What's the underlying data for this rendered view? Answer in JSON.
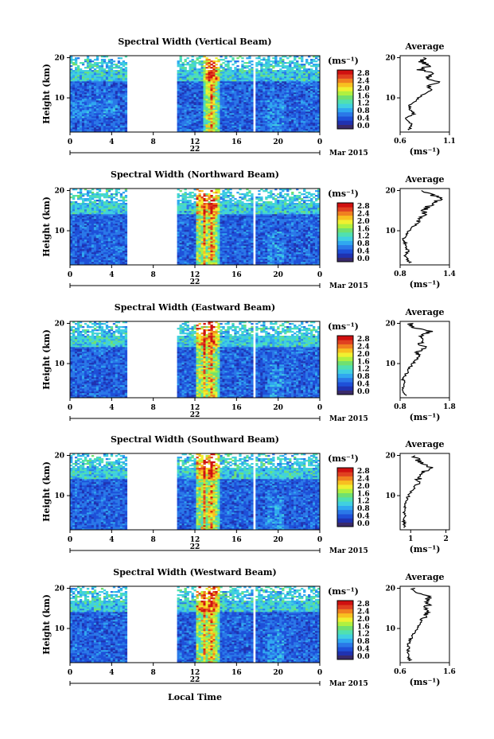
{
  "colors": {
    "scale": [
      "#3a2a6a",
      "#2032b0",
      "#1e50d8",
      "#2a78e8",
      "#30a8f0",
      "#40d0e0",
      "#50e0b0",
      "#70e070",
      "#b0f040",
      "#f0f030",
      "#f8c020",
      "#f08020",
      "#e04020",
      "#d01010"
    ],
    "blank": "#ffffff"
  },
  "colorbar": {
    "unit": "(ms⁻¹)",
    "ticks": [
      "2.8",
      "2.4",
      "2.0",
      "1.6",
      "1.2",
      "0.8",
      "0.4",
      "0.0"
    ]
  },
  "shared": {
    "ylabel": "Height (km)",
    "yticks": [
      "20",
      "10"
    ],
    "xticks": [
      "0",
      "4",
      "8",
      "12",
      "16",
      "20",
      "0"
    ],
    "date_day": "22",
    "date_month": "Mar 2015",
    "xlabel": "Local Time",
    "avg_title": "Average",
    "avg_xlabel": "(ms⁻¹)",
    "avg_yticks": [
      "20",
      "10"
    ]
  },
  "chart_data": [
    {
      "type": "heatmap",
      "title": "Spectral Width (Vertical Beam)",
      "x_range_hours": [
        0,
        24
      ],
      "y_range_km": [
        1.5,
        20.5
      ],
      "gaps_hours": [
        [
          5.5,
          10.2
        ],
        [
          17.6,
          17.9
        ]
      ],
      "clim": [
        0,
        3.0
      ],
      "avg_profile": {
        "xticks": [
          "0.6",
          "1.1"
        ],
        "xlim": [
          0.6,
          1.1
        ],
        "heights_km": [
          2,
          3,
          4,
          5,
          6,
          7,
          8,
          9,
          10,
          11,
          12,
          13,
          14,
          15,
          16,
          17,
          18,
          19,
          20
        ],
        "values": [
          0.68,
          0.72,
          0.7,
          0.66,
          0.74,
          0.71,
          0.69,
          0.75,
          0.78,
          0.85,
          0.92,
          0.88,
          0.98,
          0.86,
          0.94,
          0.8,
          0.9,
          0.82,
          0.85
        ]
      }
    },
    {
      "type": "heatmap",
      "title": "Spectral Width (Northward Beam)",
      "x_range_hours": [
        0,
        24
      ],
      "y_range_km": [
        1.5,
        20.5
      ],
      "gaps_hours": [
        [
          5.5,
          10.2
        ],
        [
          17.6,
          17.9
        ]
      ],
      "clim": [
        0,
        3.0
      ],
      "avg_profile": {
        "xticks": [
          "0.8",
          "1.4"
        ],
        "xlim": [
          0.8,
          1.4
        ],
        "heights_km": [
          2,
          3,
          4,
          5,
          6,
          7,
          8,
          9,
          10,
          11,
          12,
          13,
          14,
          15,
          16,
          17,
          18,
          19,
          20
        ],
        "values": [
          0.92,
          0.88,
          0.86,
          0.9,
          0.87,
          0.86,
          0.84,
          0.87,
          0.9,
          0.96,
          1.02,
          1.06,
          1.1,
          1.08,
          1.14,
          1.22,
          1.3,
          1.18,
          1.05
        ]
      }
    },
    {
      "type": "heatmap",
      "title": "Spectral Width (Eastward Beam)",
      "x_range_hours": [
        0,
        24
      ],
      "y_range_km": [
        1.5,
        20.5
      ],
      "gaps_hours": [
        [
          5.5,
          10.2
        ],
        [
          17.6,
          17.9
        ]
      ],
      "clim": [
        0,
        3.0
      ],
      "avg_profile": {
        "xticks": [
          "0.8",
          "1.8"
        ],
        "xlim": [
          0.8,
          1.8
        ],
        "heights_km": [
          2,
          3,
          4,
          5,
          6,
          7,
          8,
          9,
          10,
          11,
          12,
          13,
          14,
          15,
          16,
          17,
          18,
          19,
          20
        ],
        "values": [
          0.9,
          0.86,
          0.85,
          0.88,
          0.86,
          0.9,
          0.95,
          1.0,
          1.06,
          1.12,
          1.2,
          1.16,
          1.28,
          1.22,
          1.32,
          1.2,
          1.4,
          1.1,
          1.0
        ]
      }
    },
    {
      "type": "heatmap",
      "title": "Spectral Width (Southward Beam)",
      "x_range_hours": [
        0,
        24
      ],
      "y_range_km": [
        1.5,
        20.5
      ],
      "gaps_hours": [
        [
          5.5,
          10.2
        ],
        [
          17.6,
          17.9
        ]
      ],
      "clim": [
        0,
        3.0
      ],
      "avg_profile": {
        "xticks": [
          "1",
          "2"
        ],
        "xlim": [
          0.7,
          2.1
        ],
        "heights_km": [
          2,
          3,
          4,
          5,
          6,
          7,
          8,
          9,
          10,
          11,
          12,
          13,
          14,
          15,
          16,
          17,
          18,
          19,
          20
        ],
        "values": [
          0.85,
          0.82,
          0.8,
          0.84,
          0.82,
          0.84,
          0.86,
          0.9,
          0.94,
          1.0,
          1.1,
          1.16,
          1.22,
          1.3,
          1.4,
          1.6,
          1.3,
          1.2,
          1.05
        ]
      }
    },
    {
      "type": "heatmap",
      "title": "Spectral Width (Westward Beam)",
      "x_range_hours": [
        0,
        24
      ],
      "y_range_km": [
        1.5,
        20.5
      ],
      "gaps_hours": [
        [
          5.5,
          10.2
        ],
        [
          17.6,
          17.9
        ]
      ],
      "clim": [
        0,
        3.0
      ],
      "avg_profile": {
        "xticks": [
          "0.6",
          "1.6"
        ],
        "xlim": [
          0.6,
          1.6
        ],
        "heights_km": [
          2,
          3,
          4,
          5,
          6,
          7,
          8,
          9,
          10,
          11,
          12,
          13,
          14,
          15,
          16,
          17,
          18,
          19,
          20
        ],
        "values": [
          0.8,
          0.76,
          0.74,
          0.78,
          0.76,
          0.8,
          0.84,
          0.88,
          0.94,
          1.0,
          1.06,
          1.12,
          1.16,
          1.1,
          1.18,
          1.12,
          1.22,
          0.95,
          0.85
        ]
      }
    }
  ]
}
